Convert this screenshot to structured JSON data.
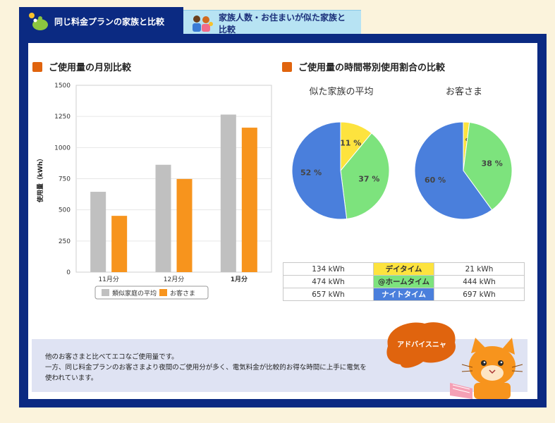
{
  "tabs": [
    {
      "label": "同じ料金プランの家族と比較",
      "active": true
    },
    {
      "label": "家族人数・お住まいが似た家族と比較",
      "active": false
    }
  ],
  "monthly": {
    "title": "ご使用量の月別比較"
  },
  "hourly": {
    "title": "ご使用量の時間帯別使用割合の比較"
  },
  "chart_data": [
    {
      "type": "bar",
      "title": "ご使用量の月別比較",
      "ylabel": "使用量（kWh）",
      "xlabel": "",
      "ylim": [
        0,
        1500
      ],
      "yticks": [
        0,
        250,
        500,
        750,
        1000,
        1250,
        1500
      ],
      "categories": [
        "11月分",
        "12月分",
        "1月分"
      ],
      "series": [
        {
          "name": "類似家庭の平均",
          "color": "#c0c0c0",
          "values": [
            645,
            862,
            1265
          ]
        },
        {
          "name": "お客さま",
          "color": "#f7941d",
          "values": [
            452,
            748,
            1160
          ]
        }
      ],
      "grid": true,
      "legend": "bottom"
    },
    {
      "type": "pie",
      "title": "似た家族の平均",
      "labels": [
        "デイタイム",
        "@ホームタイム",
        "ナイトタイム"
      ],
      "values": [
        11,
        37,
        52
      ],
      "value_labels": [
        "11 %",
        "37 %",
        "52 %"
      ],
      "colors": [
        "#fde33e",
        "#7de37d",
        "#4a7fdc"
      ]
    },
    {
      "type": "pie",
      "title": "お客さま",
      "labels": [
        "デイタイム",
        "@ホームタイム",
        "ナイトタイム"
      ],
      "values": [
        2,
        38,
        60
      ],
      "value_labels": [
        "2 %",
        "38 %",
        "60 %"
      ],
      "colors": [
        "#fde33e",
        "#7de37d",
        "#4a7fdc"
      ]
    },
    {
      "type": "table",
      "rows": [
        {
          "avg": "134 kWh",
          "label": "デイタイム",
          "color": "#fde33e",
          "customer": "21 kWh"
        },
        {
          "avg": "474 kWh",
          "label": "@ホームタイム",
          "color": "#7de37d",
          "customer": "444 kWh"
        },
        {
          "avg": "657 kWh",
          "label": "ナイトタイム",
          "color": "#4a7fdc",
          "customer": "697 kWh"
        }
      ]
    }
  ],
  "advice": {
    "lines": [
      "他のお客さまと比べてエコなご使用量です。",
      "一方、同じ料金プランのお客さまより夜間のご使用分が多く、電気料金が比較的お得な時間に上手に電気を",
      "使われています。"
    ],
    "bubble_label": "アドバイスニャ"
  }
}
